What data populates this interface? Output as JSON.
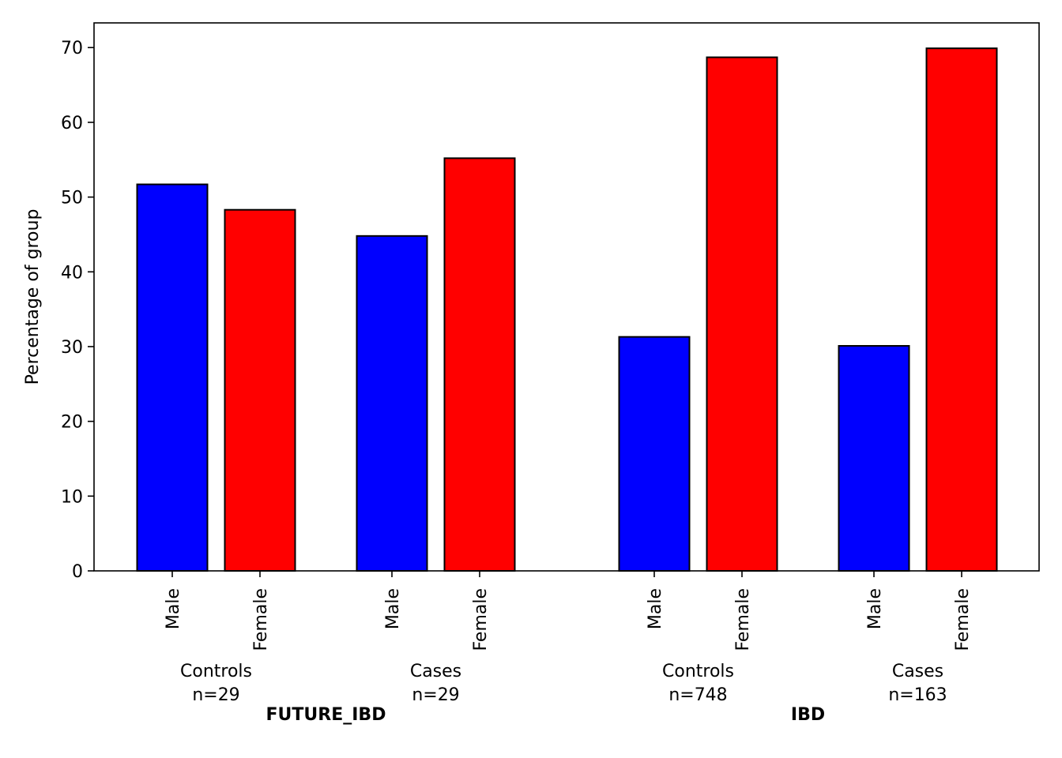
{
  "chart_data": {
    "type": "bar",
    "ylabel": "Percentage of group",
    "ylim": [
      0,
      73.3
    ],
    "yticks": [
      0,
      10,
      20,
      30,
      40,
      50,
      60,
      70
    ],
    "grid": false,
    "colors": {
      "Male": "#0000ff",
      "Female": "#ff0000",
      "edge": "#000000"
    },
    "supergroups": [
      {
        "name": "FUTURE_IBD",
        "groups": [
          {
            "name": "Controls",
            "n": "n=29",
            "bars": [
              {
                "label": "Male",
                "value": 51.7
              },
              {
                "label": "Female",
                "value": 48.3
              }
            ]
          },
          {
            "name": "Cases",
            "n": "n=29",
            "bars": [
              {
                "label": "Male",
                "value": 44.8
              },
              {
                "label": "Female",
                "value": 55.2
              }
            ]
          }
        ]
      },
      {
        "name": "IBD",
        "groups": [
          {
            "name": "Controls",
            "n": "n=748",
            "bars": [
              {
                "label": "Male",
                "value": 31.3
              },
              {
                "label": "Female",
                "value": 68.7
              }
            ]
          },
          {
            "name": "Cases",
            "n": "n=163",
            "bars": [
              {
                "label": "Male",
                "value": 30.1
              },
              {
                "label": "Female",
                "value": 69.9
              }
            ]
          }
        ]
      }
    ]
  }
}
